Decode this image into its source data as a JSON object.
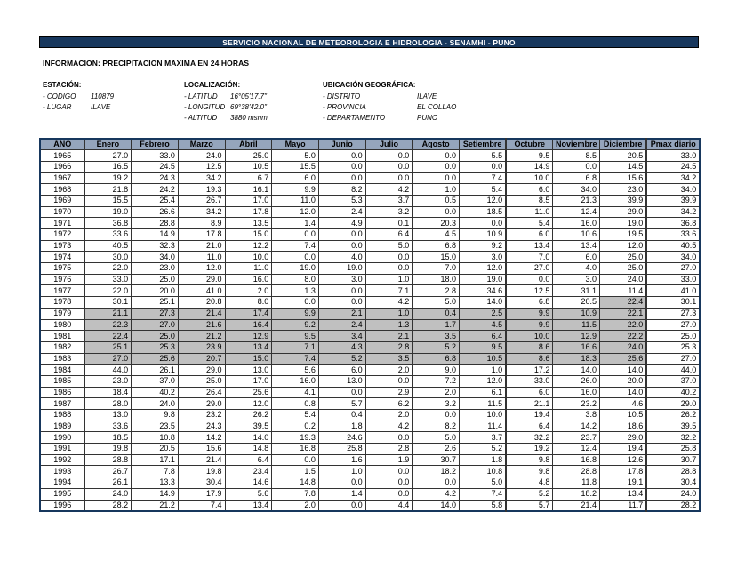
{
  "banner": {
    "title": "SERVICIO NACIONAL DE METEOROLOGIA E HIDROLOGIA - SENAMHI - PUNO"
  },
  "info_line": "INFORMACION:  PRECIPITACION MAXIMA EN 24 HORAS",
  "station": {
    "heading": "ESTACIÓN:",
    "rows": [
      {
        "label": "- CODIGO",
        "value": "110879"
      },
      {
        "label": "- LUGAR",
        "value": "ILAVE"
      }
    ]
  },
  "localization": {
    "heading": "LOCALIZACIÓN:",
    "rows": [
      {
        "label": "- LATITUD",
        "value": "16°05'17.7\""
      },
      {
        "label": "- LONGITUD",
        "value": "69°38'42.0\""
      },
      {
        "label": "- ALTITUD",
        "value": "3880 msnm"
      }
    ]
  },
  "geo": {
    "heading": "UBICACIÓN GEOGRÁFICA:",
    "rows": [
      {
        "label": "- DISTRITO",
        "value": "ILAVE"
      },
      {
        "label": "- PROVINCIA",
        "value": "EL COLLAO"
      },
      {
        "label": "- DEPARTAMENTO",
        "value": "PUNO"
      }
    ]
  },
  "colors": {
    "banner_bg": "#17375D",
    "header_bg": "#95A5BC",
    "shaded_cell": "#C0C0C0",
    "grid_line": "#333333",
    "outer_border": "#17375D"
  },
  "table": {
    "headers": [
      "AÑO",
      "Enero",
      "Febrero",
      "Marzo",
      "Abril",
      "Mayo",
      "Junio",
      "Julio",
      "Agosto",
      "Setiembre",
      "Octubre",
      "Noviembre",
      "Diciembre",
      "Pmax diario"
    ],
    "rows": [
      {
        "year": "1965",
        "values": [
          "27.0",
          "33.0",
          "24.0",
          "25.0",
          "5.0",
          "0.0",
          "0.0",
          "0.0",
          "5.5",
          "9.5",
          "8.5",
          "20.5"
        ],
        "pmax": "33.0",
        "shade": "none"
      },
      {
        "year": "1966",
        "values": [
          "16.5",
          "24.5",
          "12.5",
          "10.5",
          "15.5",
          "0.0",
          "0.0",
          "0.0",
          "0.0",
          "14.9",
          "0.0",
          "14.5"
        ],
        "pmax": "24.5",
        "shade": "none"
      },
      {
        "year": "1967",
        "values": [
          "19.2",
          "24.3",
          "34.2",
          "6.7",
          "6.0",
          "0.0",
          "0.0",
          "0.0",
          "7.4",
          "10.0",
          "6.8",
          "15.6"
        ],
        "pmax": "34.2",
        "shade": "none"
      },
      {
        "year": "1968",
        "values": [
          "21.8",
          "24.2",
          "19.3",
          "16.1",
          "9.9",
          "8.2",
          "4.2",
          "1.0",
          "5.4",
          "6.0",
          "34.0",
          "23.0"
        ],
        "pmax": "34.0",
        "shade": "none"
      },
      {
        "year": "1969",
        "values": [
          "15.5",
          "25.4",
          "26.7",
          "17.0",
          "11.0",
          "5.3",
          "3.7",
          "0.5",
          "12.0",
          "8.5",
          "21.3",
          "39.9"
        ],
        "pmax": "39.9",
        "shade": "none"
      },
      {
        "year": "1970",
        "values": [
          "19.0",
          "26.6",
          "34.2",
          "17.8",
          "12.0",
          "2.4",
          "3.2",
          "0.0",
          "18.5",
          "11.0",
          "12.4",
          "29.0"
        ],
        "pmax": "34.2",
        "shade": "none"
      },
      {
        "year": "1971",
        "values": [
          "36.8",
          "28.8",
          "8.9",
          "13.5",
          "1.4",
          "4.9",
          "0.1",
          "20.3",
          "0.0",
          "5.4",
          "16.0",
          "19.0"
        ],
        "pmax": "36.8",
        "shade": "none"
      },
      {
        "year": "1972",
        "values": [
          "33.6",
          "14.9",
          "17.8",
          "15.0",
          "0.0",
          "0.0",
          "6.4",
          "4.5",
          "10.9",
          "6.0",
          "10.6",
          "19.5"
        ],
        "pmax": "33.6",
        "shade": "none"
      },
      {
        "year": "1973",
        "values": [
          "40.5",
          "32.3",
          "21.0",
          "12.2",
          "7.4",
          "0.0",
          "5.0",
          "6.8",
          "9.2",
          "13.4",
          "13.4",
          "12.0"
        ],
        "pmax": "40.5",
        "shade": "none"
      },
      {
        "year": "1974",
        "values": [
          "30.0",
          "34.0",
          "11.0",
          "10.0",
          "0.0",
          "4.0",
          "0.0",
          "15.0",
          "3.0",
          "7.0",
          "6.0",
          "25.0"
        ],
        "pmax": "34.0",
        "shade": "none"
      },
      {
        "year": "1975",
        "values": [
          "22.0",
          "23.0",
          "12.0",
          "11.0",
          "19.0",
          "19.0",
          "0.0",
          "7.0",
          "12.0",
          "27.0",
          "4.0",
          "25.0"
        ],
        "pmax": "27.0",
        "shade": "none"
      },
      {
        "year": "1976",
        "values": [
          "33.0",
          "25.0",
          "29.0",
          "16.0",
          "8.0",
          "3.0",
          "1.0",
          "18.0",
          "19.0",
          "0.0",
          "3.0",
          "24.0"
        ],
        "pmax": "33.0",
        "shade": "none"
      },
      {
        "year": "1977",
        "values": [
          "22.0",
          "20.0",
          "41.0",
          "2.0",
          "1.3",
          "0.0",
          "7.1",
          "2.8",
          "34.6",
          "12.5",
          "31.1",
          "11.4"
        ],
        "pmax": "41.0",
        "shade": "none"
      },
      {
        "year": "1978",
        "values": [
          "30.1",
          "25.1",
          "20.8",
          "8.0",
          "0.0",
          "0.0",
          "4.2",
          "5.0",
          "14.0",
          "6.8",
          "20.5",
          "22.4"
        ],
        "pmax": "30.1",
        "shade": "dec"
      },
      {
        "year": "1979",
        "values": [
          "21.1",
          "27.3",
          "21.4",
          "17.4",
          "9.9",
          "2.1",
          "1.0",
          "0.4",
          "2.5",
          "9.9",
          "10.9",
          "22.1"
        ],
        "pmax": "27.3",
        "shade": "months"
      },
      {
        "year": "1980",
        "values": [
          "22.3",
          "27.0",
          "21.6",
          "16.4",
          "9.2",
          "2.4",
          "1.3",
          "1.7",
          "4.5",
          "9.9",
          "11.5",
          "22.0"
        ],
        "pmax": "27.0",
        "shade": "months"
      },
      {
        "year": "1981",
        "values": [
          "22.4",
          "25.0",
          "21.2",
          "12.9",
          "9.5",
          "3.4",
          "2.1",
          "3.5",
          "6.4",
          "10.0",
          "12.9",
          "22.2"
        ],
        "pmax": "25.0",
        "shade": "months"
      },
      {
        "year": "1982",
        "values": [
          "25.1",
          "25.3",
          "23.9",
          "13.4",
          "7.1",
          "4.3",
          "2.8",
          "5.2",
          "9.5",
          "8.6",
          "16.6",
          "24.0"
        ],
        "pmax": "25.3",
        "shade": "months"
      },
      {
        "year": "1983",
        "values": [
          "27.0",
          "25.6",
          "20.7",
          "15.0",
          "7.4",
          "5.2",
          "3.5",
          "6.8",
          "10.5",
          "8.6",
          "18.3",
          "25.6"
        ],
        "pmax": "27.0",
        "shade": "months"
      },
      {
        "year": "1984",
        "values": [
          "44.0",
          "26.1",
          "29.0",
          "13.0",
          "5.6",
          "6.0",
          "2.0",
          "9.0",
          "1.0",
          "17.2",
          "14.0",
          "14.0"
        ],
        "pmax": "44.0",
        "shade": "none"
      },
      {
        "year": "1985",
        "values": [
          "23.0",
          "37.0",
          "25.0",
          "17.0",
          "16.0",
          "13.0",
          "0.0",
          "7.2",
          "12.0",
          "33.0",
          "26.0",
          "20.0"
        ],
        "pmax": "37.0",
        "shade": "none"
      },
      {
        "year": "1986",
        "values": [
          "18.4",
          "40.2",
          "26.4",
          "25.6",
          "4.1",
          "0.0",
          "2.9",
          "2.0",
          "6.1",
          "6.0",
          "16.0",
          "14.0"
        ],
        "pmax": "40.2",
        "shade": "none"
      },
      {
        "year": "1987",
        "values": [
          "28.0",
          "24.0",
          "29.0",
          "12.0",
          "0.8",
          "5.7",
          "6.2",
          "3.2",
          "11.5",
          "21.1",
          "23.2",
          "4.6"
        ],
        "pmax": "29.0",
        "shade": "none"
      },
      {
        "year": "1988",
        "values": [
          "13.0",
          "9.8",
          "23.2",
          "26.2",
          "5.4",
          "0.4",
          "2.0",
          "0.0",
          "10.0",
          "19.4",
          "3.8",
          "10.5"
        ],
        "pmax": "26.2",
        "shade": "none"
      },
      {
        "year": "1989",
        "values": [
          "33.6",
          "23.5",
          "24.3",
          "39.5",
          "0.2",
          "1.8",
          "4.2",
          "8.2",
          "11.4",
          "6.4",
          "14.2",
          "18.6"
        ],
        "pmax": "39.5",
        "shade": "none"
      },
      {
        "year": "1990",
        "values": [
          "18.5",
          "10.8",
          "14.2",
          "14.0",
          "19.3",
          "24.6",
          "0.0",
          "5.0",
          "3.7",
          "32.2",
          "23.7",
          "29.0"
        ],
        "pmax": "32.2",
        "shade": "none"
      },
      {
        "year": "1991",
        "values": [
          "19.8",
          "20.5",
          "15.6",
          "14.8",
          "16.8",
          "25.8",
          "2.8",
          "2.6",
          "5.2",
          "19.2",
          "12.4",
          "19.4"
        ],
        "pmax": "25.8",
        "shade": "none"
      },
      {
        "year": "1992",
        "values": [
          "28.8",
          "17.1",
          "21.4",
          "6.4",
          "0.0",
          "1.6",
          "1.9",
          "30.7",
          "1.8",
          "9.8",
          "16.8",
          "12.6"
        ],
        "pmax": "30.7",
        "shade": "none"
      },
      {
        "year": "1993",
        "values": [
          "26.7",
          "7.8",
          "19.8",
          "23.4",
          "1.5",
          "1.0",
          "0.0",
          "18.2",
          "10.8",
          "9.8",
          "28.8",
          "17.8"
        ],
        "pmax": "28.8",
        "shade": "none"
      },
      {
        "year": "1994",
        "values": [
          "26.1",
          "13.3",
          "30.4",
          "14.6",
          "14.8",
          "0.0",
          "0.0",
          "0.0",
          "5.0",
          "4.8",
          "11.8",
          "19.1"
        ],
        "pmax": "30.4",
        "shade": "none"
      },
      {
        "year": "1995",
        "values": [
          "24.0",
          "14.9",
          "17.9",
          "5.6",
          "7.8",
          "1.4",
          "0.0",
          "4.2",
          "7.4",
          "5.2",
          "18.2",
          "13.4"
        ],
        "pmax": "24.0",
        "shade": "none"
      },
      {
        "year": "1996",
        "values": [
          "28.2",
          "21.2",
          "7.4",
          "13.4",
          "2.0",
          "0.0",
          "4.4",
          "14.0",
          "5.8",
          "5.7",
          "21.4",
          "11.7"
        ],
        "pmax": "28.2",
        "shade": "none"
      }
    ]
  }
}
